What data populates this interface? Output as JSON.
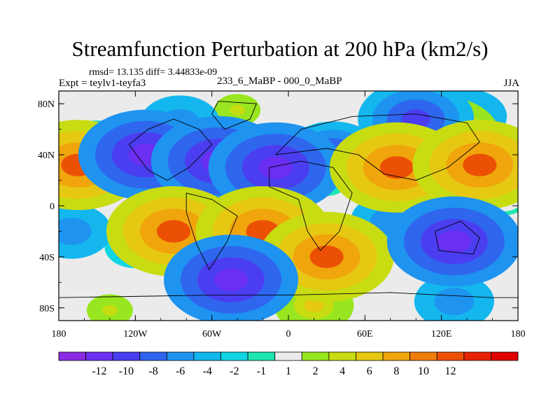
{
  "title": "Streamfunction Perturbation at 200 hPa (km2/s)",
  "stats_text": "rmsd= 13.135 diff= 3.44833e-09",
  "experiment_label": "Expt = teylv1-teyfa3",
  "center_label": "233_6_MaBP - 000_0_MaBP",
  "season_label": "JJA",
  "chart_data": {
    "type": "heatmap",
    "title": "Streamfunction Perturbation at 200 hPa (km2/s)",
    "units": "km2/s",
    "x_axis": {
      "range": [
        -180,
        180
      ],
      "ticks": [
        {
          "value": -180,
          "label": "180"
        },
        {
          "value": -120,
          "label": "120W"
        },
        {
          "value": -60,
          "label": "60W"
        },
        {
          "value": 0,
          "label": "0"
        },
        {
          "value": 60,
          "label": "60E"
        },
        {
          "value": 120,
          "label": "120E"
        },
        {
          "value": 180,
          "label": "180"
        }
      ]
    },
    "y_axis": {
      "range": [
        -90,
        90
      ],
      "ticks": [
        {
          "value": 80,
          "label": "80N"
        },
        {
          "value": 40,
          "label": "40N"
        },
        {
          "value": 0,
          "label": "0"
        },
        {
          "value": -40,
          "label": "40S"
        },
        {
          "value": -80,
          "label": "80S"
        }
      ]
    },
    "colorbar": {
      "labels": [
        "-12",
        "-10",
        "-8",
        "-6",
        "-4",
        "-2",
        "-1",
        "1",
        "2",
        "4",
        "6",
        "8",
        "10",
        "12"
      ],
      "colors": [
        "#8a2be2",
        "#6a2ff0",
        "#4a3ef0",
        "#2f66ee",
        "#1e93f0",
        "#13b7ee",
        "#10d6e3",
        "#1ee6b0",
        "#ebebeb",
        "#98e620",
        "#c8dc12",
        "#e6c812",
        "#f0a50c",
        "#f07d0a",
        "#eb5005",
        "#e82305",
        "#e00000"
      ]
    },
    "anomaly_centers": [
      {
        "lon": -165,
        "lat": 32,
        "value": 12
      },
      {
        "lon": -112,
        "lat": 40,
        "value": -12
      },
      {
        "lon": -55,
        "lat": 35,
        "value": -12
      },
      {
        "lon": -10,
        "lat": 30,
        "value": -12
      },
      {
        "lon": 35,
        "lat": 40,
        "value": -8
      },
      {
        "lon": 30,
        "lat": 20,
        "value": -2
      },
      {
        "lon": 85,
        "lat": 30,
        "value": 12
      },
      {
        "lon": 150,
        "lat": 32,
        "value": 12
      },
      {
        "lon": 120,
        "lat": 55,
        "value": 10
      },
      {
        "lon": 100,
        "lat": 68,
        "value": -10
      },
      {
        "lon": 140,
        "lat": 70,
        "value": -6
      },
      {
        "lon": -40,
        "lat": 75,
        "value": 4
      },
      {
        "lon": -85,
        "lat": 65,
        "value": -6
      },
      {
        "lon": -90,
        "lat": -20,
        "value": 12
      },
      {
        "lon": -20,
        "lat": -20,
        "value": 12
      },
      {
        "lon": 30,
        "lat": -40,
        "value": 12
      },
      {
        "lon": -120,
        "lat": -32,
        "value": -4
      },
      {
        "lon": -170,
        "lat": -20,
        "value": -6
      },
      {
        "lon": -45,
        "lat": -58,
        "value": -12
      },
      {
        "lon": 80,
        "lat": -12,
        "value": -6
      },
      {
        "lon": 130,
        "lat": -28,
        "value": -12
      },
      {
        "lon": 20,
        "lat": -78,
        "value": 6
      },
      {
        "lon": 130,
        "lat": -75,
        "value": -6
      },
      {
        "lon": -140,
        "lat": -82,
        "value": 4
      },
      {
        "lon": 170,
        "lat": 5,
        "value": 2
      },
      {
        "lon": -150,
        "lat": 50,
        "value": -4
      }
    ]
  }
}
